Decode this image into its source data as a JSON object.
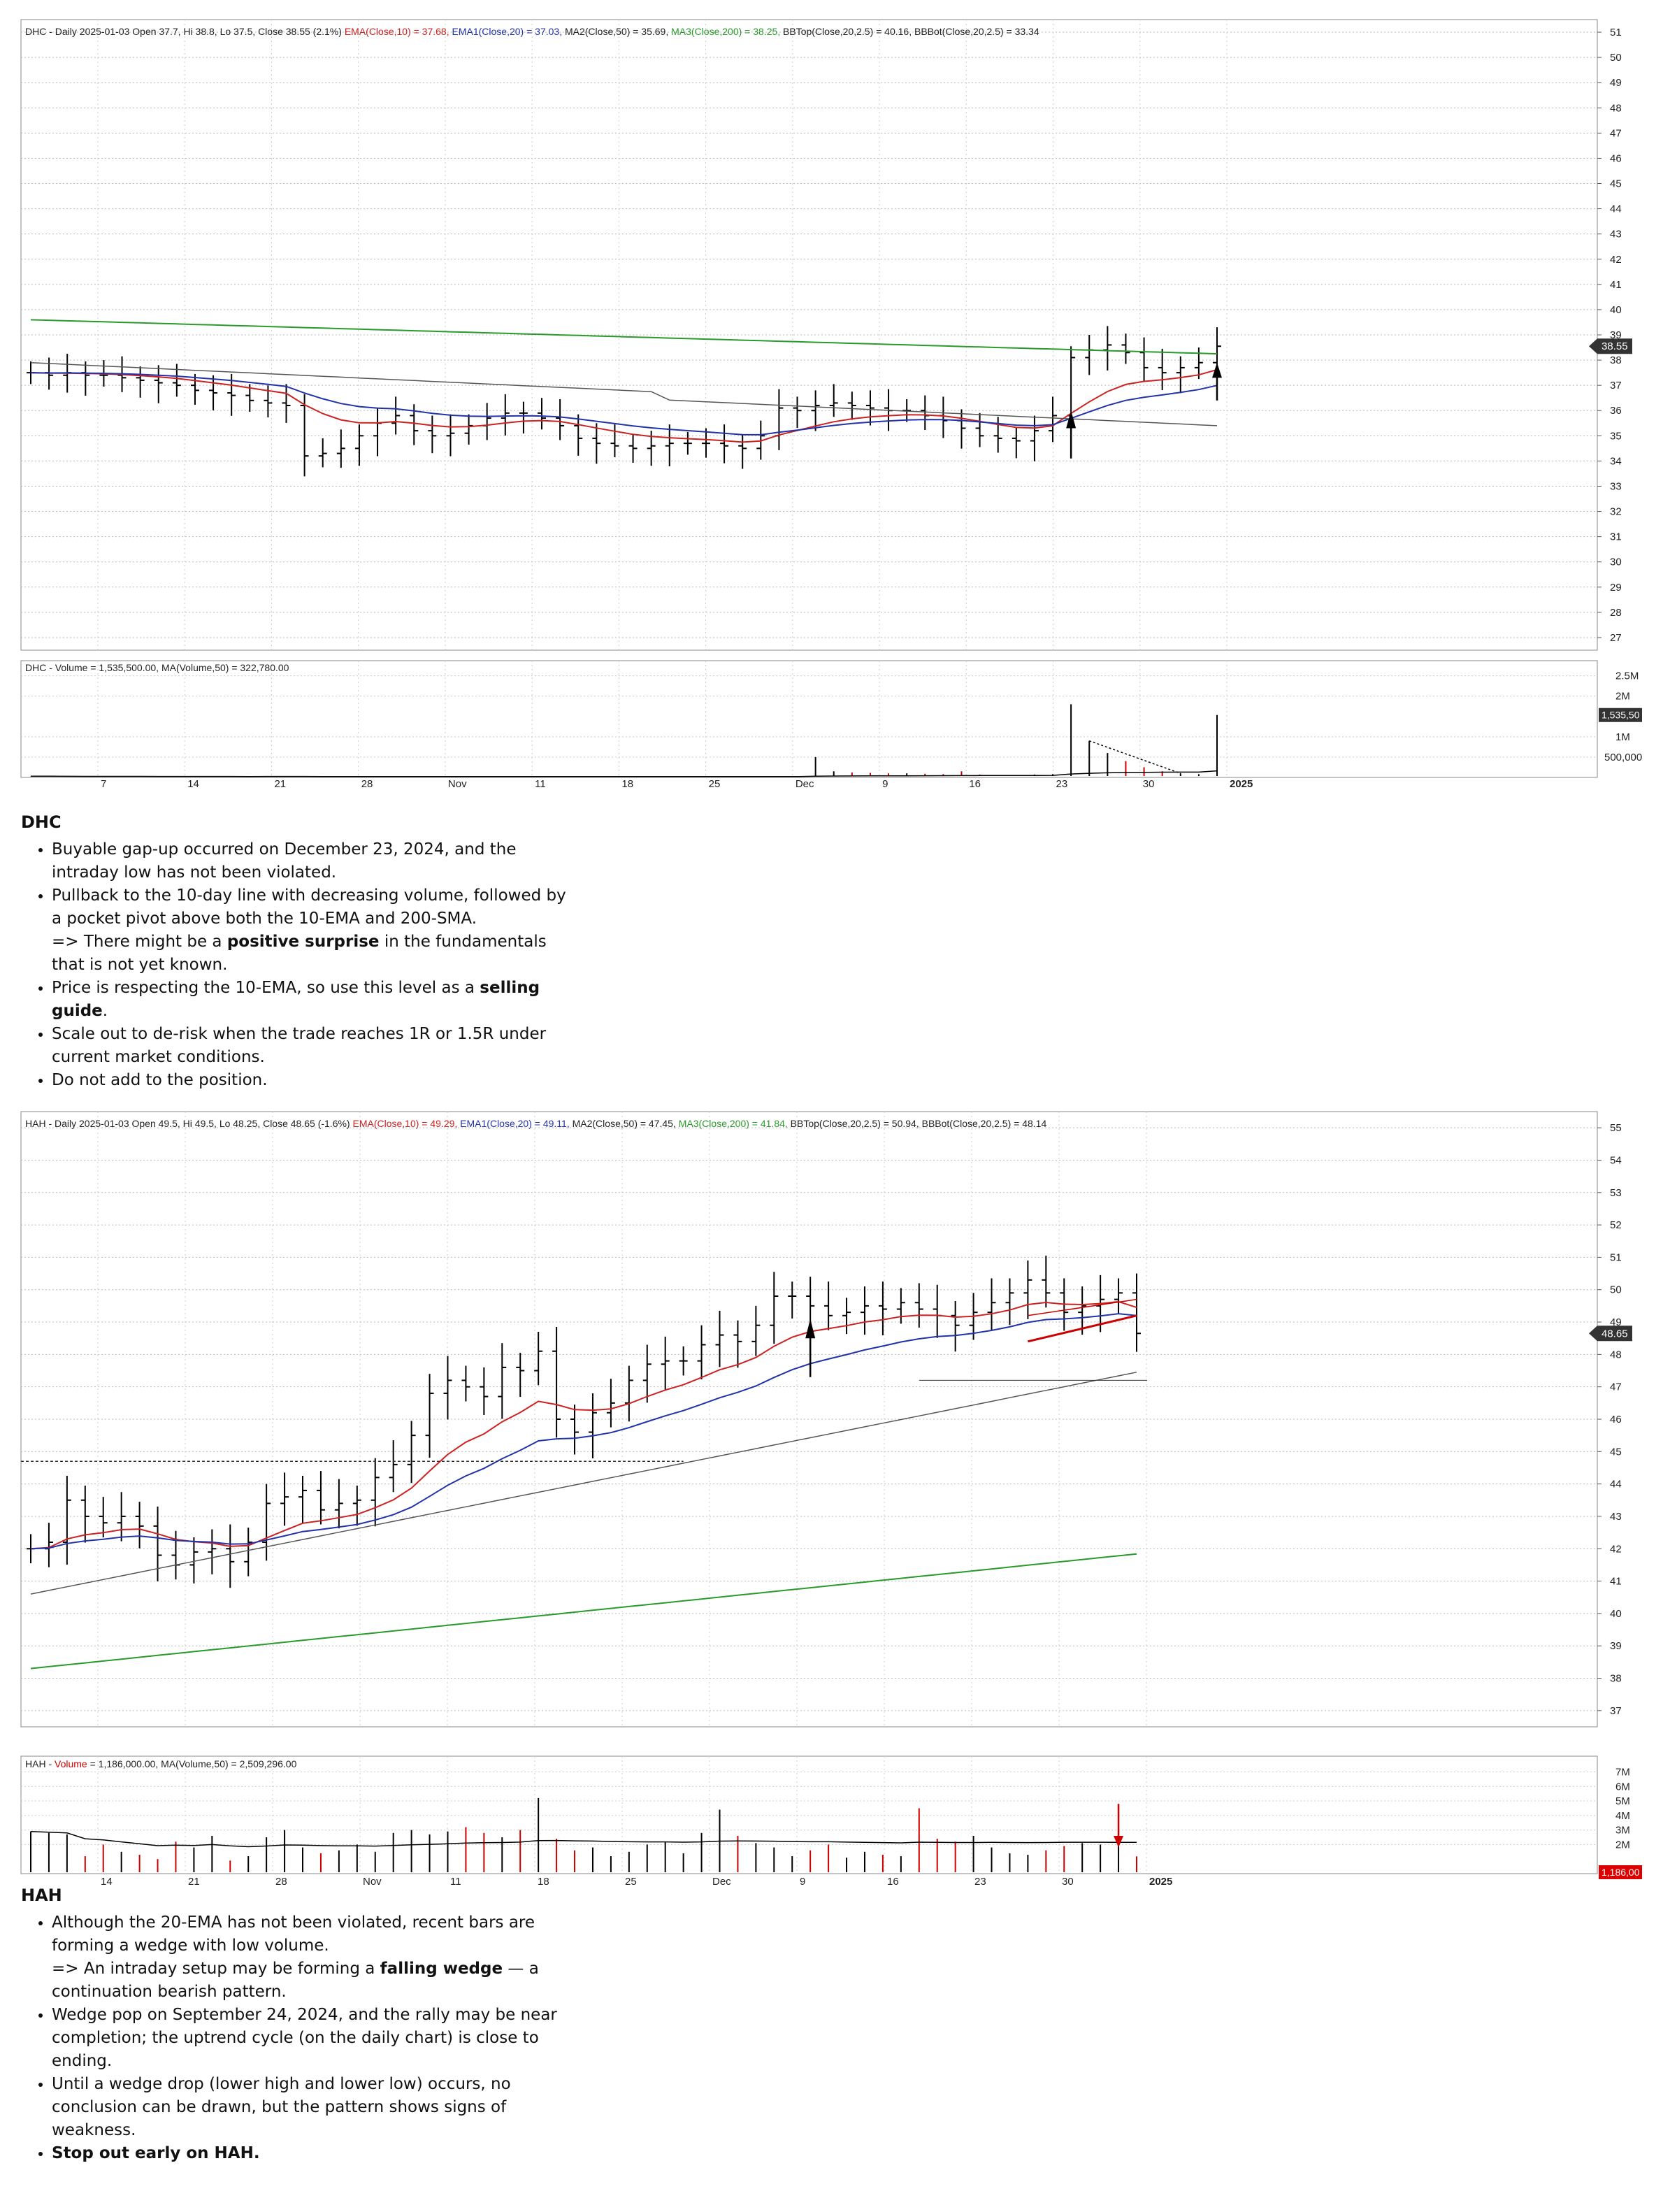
{
  "chart_data": [
    {
      "type": "line",
      "ticker": "DHC",
      "price_legend": {
        "prefix": "DHC - Daily 2025-01-03 Open 37.7, Hi 38.8, Lo 37.5, Close 38.55 (2.1%)",
        "ema10": "EMA(Close,10) = 37.68,",
        "ema20": "EMA1(Close,20) = 37.03,",
        "ma50": "MA2(Close,50) = 35.69,",
        "ma200": "MA3(Close,200) = 38.25,",
        "bb": "BBTop(Close,20,2.5) = 40.16, BBBot(Close,20,2.5) = 33.34"
      },
      "volume_legend": "DHC - Volume = 1,535,500.00, MA(Volume,50) = 322,780.00",
      "y_ticks": [
        "51",
        "50",
        "49",
        "48",
        "47",
        "46",
        "45",
        "44",
        "43",
        "42",
        "41",
        "40",
        "39",
        "38",
        "37",
        "36",
        "35",
        "34",
        "33",
        "32",
        "31",
        "30",
        "29",
        "28",
        "27"
      ],
      "ylim": [
        26.5,
        51.5
      ],
      "last_price_label": "38.55",
      "volume_ticks": [
        "2.5M",
        "2M",
        "1M",
        "500,000"
      ],
      "last_volume_label": "1,535,50",
      "x_labels": [
        "7",
        "14",
        "21",
        "28",
        "Nov",
        "11",
        "18",
        "25",
        "Dec",
        "9",
        "16",
        "23",
        "30",
        "2025"
      ],
      "colors": {
        "ema10": "#cc2222",
        "ema20": "#2233aa",
        "ma50": "#555555",
        "ma200": "#2a9a2a",
        "bars": "#000000",
        "vol_up": "#000000",
        "vol_down": "#cc0000"
      },
      "closes": [
        37.5,
        37.4,
        37.5,
        37.4,
        37.4,
        37.3,
        37.2,
        37.1,
        37.0,
        36.8,
        36.7,
        36.6,
        36.4,
        36.3,
        36.2,
        34.2,
        34.3,
        34.5,
        35.0,
        35.5,
        35.8,
        35.2,
        35.0,
        35.1,
        35.4,
        35.7,
        35.9,
        35.9,
        35.7,
        35.4,
        34.9,
        34.7,
        34.6,
        34.5,
        34.6,
        34.7,
        34.7,
        34.7,
        34.6,
        34.5,
        35.0,
        36.1,
        36.0,
        36.2,
        36.3,
        36.2,
        36.1,
        36.0,
        36.0,
        35.8,
        35.6,
        35.3,
        35.0,
        34.9,
        34.8,
        35.2,
        35.8,
        38.1,
        38.4,
        38.6,
        38.3,
        37.7,
        37.5,
        37.7,
        37.9,
        38.55
      ],
      "volume": [
        30,
        28,
        25,
        22,
        26,
        20,
        24,
        22,
        20,
        18,
        25,
        20,
        18,
        30,
        25,
        22,
        18,
        20,
        22,
        18,
        25,
        20,
        15,
        18,
        20,
        16,
        18,
        20,
        15,
        14,
        18,
        22,
        20,
        18,
        20,
        22,
        18,
        16,
        20,
        18,
        20,
        22,
        25,
        500,
        150,
        120,
        110,
        100,
        100,
        90,
        80,
        150,
        70,
        60,
        60,
        70,
        80,
        1800,
        900,
        600,
        400,
        250,
        150,
        100,
        80,
        1535
      ]
    },
    {
      "type": "line",
      "ticker": "HAH",
      "price_legend": {
        "prefix": "HAH - Daily 2025-01-03 Open 49.5, Hi 49.5, Lo 48.25, Close 48.65 (-1.6%)",
        "ema10": "EMA(Close,10) = 49.29,",
        "ema20": "EMA1(Close,20) = 49.11,",
        "ma50": "MA2(Close,50) = 47.45,",
        "ma200": "MA3(Close,200) = 41.84,",
        "bb": "BBTop(Close,20,2.5) = 50.94, BBBot(Close,20,2.5) = 48.14"
      },
      "volume_legend_prefix": "HAH - ",
      "volume_legend_word": "Volume",
      "volume_legend_rest": " = 1,186,000.00, MA(Volume,50) = 2,509,296.00",
      "y_ticks": [
        "55",
        "54",
        "53",
        "52",
        "51",
        "50",
        "49",
        "48",
        "47",
        "46",
        "45",
        "44",
        "43",
        "42",
        "41",
        "40",
        "39",
        "38",
        "37"
      ],
      "ylim": [
        36.5,
        55.5
      ],
      "last_price_label": "48.65",
      "volume_ticks": [
        "7M",
        "6M",
        "5M",
        "4M",
        "3M",
        "2M"
      ],
      "last_volume_label": "1,186,00",
      "x_labels": [
        "14",
        "21",
        "28",
        "Nov",
        "11",
        "18",
        "25",
        "Dec",
        "9",
        "16",
        "23",
        "30",
        "2025"
      ],
      "colors": {
        "ema10": "#cc2222",
        "ema20": "#2233aa",
        "ma50": "#555555",
        "ma200": "#2a9a2a",
        "bars": "#000000",
        "vol_up": "#000000",
        "vol_down": "#cc0000"
      },
      "closes": [
        42.0,
        42.2,
        43.5,
        43.0,
        42.8,
        43.0,
        42.7,
        41.8,
        41.5,
        41.9,
        42.0,
        41.6,
        42.2,
        43.4,
        43.6,
        43.8,
        43.2,
        43.4,
        43.5,
        44.2,
        44.6,
        45.5,
        46.8,
        47.2,
        47.0,
        46.7,
        47.6,
        47.5,
        48.1,
        46.0,
        45.6,
        46.2,
        46.5,
        47.2,
        47.7,
        47.8,
        47.8,
        48.3,
        48.6,
        48.4,
        48.9,
        49.8,
        49.8,
        49.5,
        49.2,
        49.3,
        49.5,
        49.4,
        49.6,
        49.4,
        49.2,
        48.9,
        49.3,
        49.6,
        49.9,
        50.3,
        49.9,
        49.3,
        49.5,
        49.7,
        49.9,
        48.65
      ],
      "volume": [
        2.9,
        2.8,
        2.7,
        1.2,
        2.0,
        1.5,
        1.3,
        1.0,
        2.2,
        1.8,
        2.6,
        0.9,
        1.2,
        2.5,
        3.0,
        1.8,
        1.4,
        1.6,
        2.0,
        1.5,
        2.8,
        3.0,
        2.7,
        2.9,
        3.2,
        2.8,
        2.5,
        3.0,
        5.2,
        2.4,
        1.6,
        1.8,
        1.2,
        1.5,
        2.0,
        2.2,
        1.4,
        2.8,
        4.4,
        2.6,
        2.1,
        1.8,
        1.2,
        1.6,
        2.0,
        1.1,
        1.5,
        1.3,
        1.2,
        4.5,
        2.4,
        2.2,
        2.6,
        1.8,
        1.4,
        1.3,
        1.6,
        1.9,
        2.1,
        2.0,
        1.9,
        1.186
      ]
    }
  ],
  "notes": {
    "dhc": {
      "title": "DHC",
      "b1": "Buyable gap-up occurred on December 23, 2024, and the intraday low has not been violated.",
      "b2a": "Pullback to the 10-day line with decreasing volume, followed by a pocket pivot above both the 10-EMA and 200-SMA.",
      "b2b_pre": "=> There might be a ",
      "b2b_bold": "positive surprise",
      "b2b_post": " in the fundamentals that is not yet known.",
      "b3_pre": "Price is respecting the 10-EMA, so use this level as a ",
      "b3_bold": "selling guide",
      "b3_post": ".",
      "b4": "Scale out to de-risk when the trade reaches 1R or 1.5R under current market conditions.",
      "b5": "Do not add to the position."
    },
    "hah": {
      "title": "HAH",
      "b1a": "Although the 20-EMA has not been violated, recent bars are forming a wedge with low volume.",
      "b1b_pre": "=> An intraday setup may be forming a ",
      "b1b_bold": "falling wedge",
      "b1b_post": " — a continuation bearish pattern.",
      "b2": "Wedge pop on September 24, 2024, and the rally may be near completion; the uptrend cycle (on the daily chart) is close to ending.",
      "b3": "Until a wedge drop (lower high and lower low) occurs, no conclusion can be drawn, but the pattern shows signs of weakness.",
      "b4": "Stop out early on HAH."
    }
  }
}
